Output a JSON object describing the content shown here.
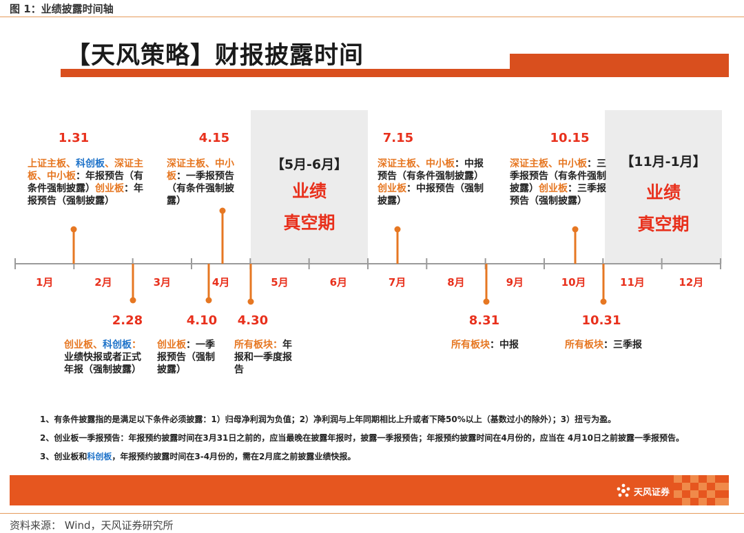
{
  "figure_caption": "图 1：业绩披露时间轴",
  "main_title": "【天风策略】财报披露时间",
  "vacuum_periods": [
    {
      "range": "【5月-6月】",
      "line1": "业绩",
      "line2": "真空期"
    },
    {
      "range": "【11月-1月】",
      "line1": "业绩",
      "line2": "真空期"
    }
  ],
  "months": [
    "1月",
    "2月",
    "3月",
    "4月",
    "5月",
    "6月",
    "7月",
    "8月",
    "9月",
    "10月",
    "11月",
    "12月"
  ],
  "events_above": [
    {
      "date": "1.31",
      "segments": [
        {
          "t": "上证主板",
          "c": "o"
        },
        {
          "t": "、",
          "c": "o"
        },
        {
          "t": "科创板",
          "c": "b"
        },
        {
          "t": "、深证主板、中小板",
          "c": "o"
        },
        {
          "t": "：年报预告（有条件强制披露）",
          "c": ""
        },
        {
          "t": "创业板",
          "c": "o"
        },
        {
          "t": "：年报预告（强制披露）",
          "c": ""
        }
      ]
    },
    {
      "date": "4.15",
      "segments": [
        {
          "t": "深证主板、中小板",
          "c": "o"
        },
        {
          "t": "：一季报预告（有条件强制披露）",
          "c": ""
        }
      ]
    },
    {
      "date": "7.15",
      "segments": [
        {
          "t": "深证主板、中小板",
          "c": "o"
        },
        {
          "t": "：中报预告（有条件强制披露）",
          "c": ""
        },
        {
          "t": "创业板",
          "c": "o"
        },
        {
          "t": "：中报预告（强制披露）",
          "c": ""
        }
      ]
    },
    {
      "date": "10.15",
      "segments": [
        {
          "t": "深证主板、中小板",
          "c": "o"
        },
        {
          "t": "：三季报预告（有条件强制披露）",
          "c": ""
        },
        {
          "t": "创业板",
          "c": "o"
        },
        {
          "t": "：三季报预告（强制披露）",
          "c": ""
        }
      ]
    }
  ],
  "events_below": [
    {
      "date": "2.28",
      "segments": [
        {
          "t": "创业板",
          "c": "o"
        },
        {
          "t": "、",
          "c": "o"
        },
        {
          "t": "科创板",
          "c": "b"
        },
        {
          "t": "：",
          "c": "o"
        },
        {
          "t": "业绩快报或者正式年报（强制披露）",
          "c": ""
        }
      ]
    },
    {
      "date": "4.10",
      "segments": [
        {
          "t": "创业板",
          "c": "o"
        },
        {
          "t": "：一季报预告（强制披露）",
          "c": ""
        }
      ]
    },
    {
      "date": "4.30",
      "segments": [
        {
          "t": "所有板块",
          "c": "o"
        },
        {
          "t": "：",
          "c": "o"
        },
        {
          "t": "年报和一季度报告",
          "c": ""
        }
      ]
    },
    {
      "date": "8.31",
      "segments": [
        {
          "t": "所有板块",
          "c": "o"
        },
        {
          "t": "：中报",
          "c": ""
        }
      ]
    },
    {
      "date": "10.31",
      "segments": [
        {
          "t": "所有板块",
          "c": "o"
        },
        {
          "t": "：三季报",
          "c": ""
        }
      ]
    }
  ],
  "notes": [
    "1、有条件披露指的是满足以下条件必须披露：1）归母净利润为负值；2）净利润与上年同期相比上升或者下降50%以上（基数过小的除外）；3）扭亏为盈。",
    "2、创业板一季报预告：年报预约披露时间在3月31日之前的，应当最晚在披露年报时，披露一季报预告；年报预约披露时间在4月份的，应当在 4月10日之前披露一季报预告。",
    {
      "pre": "3、创业板和",
      "blue": "科创板",
      "post": "，年报预约披露时间在3-4月份的，需在2月底之前披露业绩快报。"
    }
  ],
  "logo": {
    "name": "天风证券",
    "icon": "tianfeng-logo-icon"
  },
  "source": "资料来源：  Wind，天风证券研究所",
  "colors": {
    "accent": "#d94f1e",
    "red": "#e8301c",
    "orange": "#e67722",
    "blue": "#1f73c9",
    "gray_band": "#ececec"
  }
}
